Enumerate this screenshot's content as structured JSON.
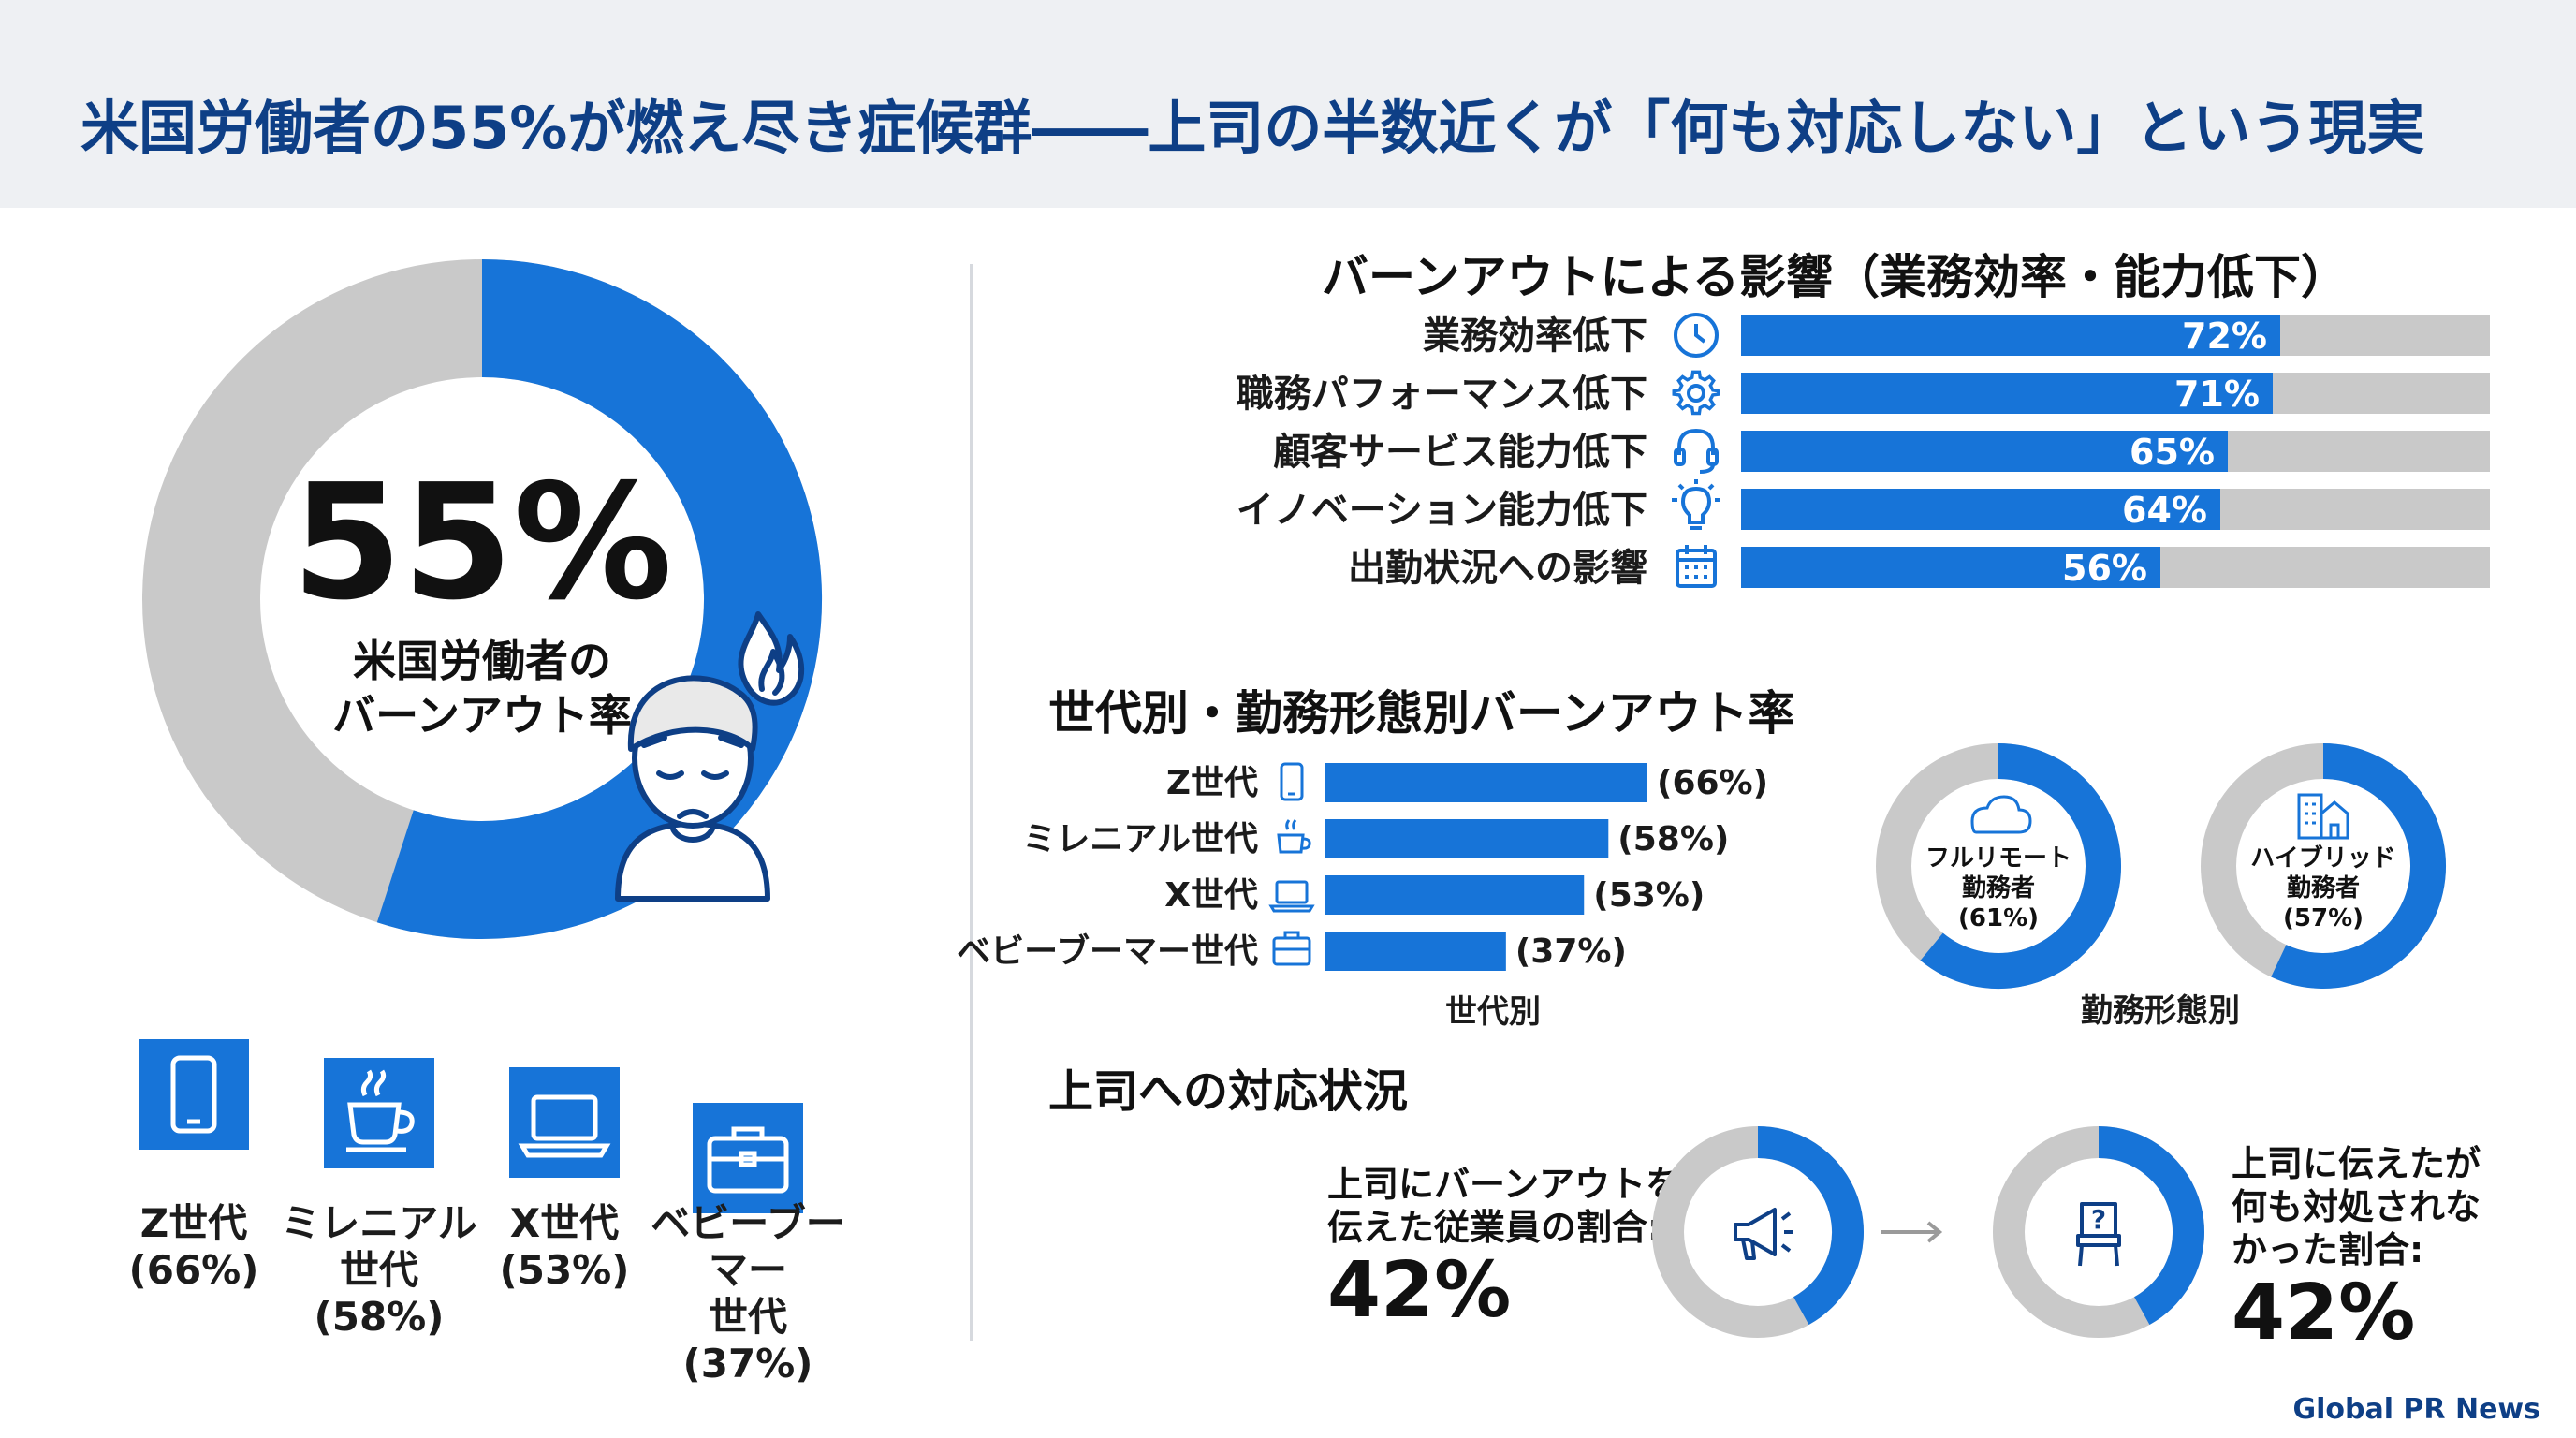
{
  "title": "米国労働者の55%が燃え尽き症候群――上司の半数近くが「何も対応しない」という現実",
  "footer": "Global PR News",
  "colors": {
    "accent": "#1774d8",
    "gray": "#c9c9c9",
    "navy": "#0e3f86"
  },
  "main_ring": {
    "value_label": "55%",
    "label_line1": "米国労働者の",
    "label_line2": "バーンアウト率",
    "icon": "burned-out-worker-icon"
  },
  "generation_tiles": [
    {
      "icon": "smartphone-icon",
      "lines": [
        "Z世代",
        "(66%)"
      ]
    },
    {
      "icon": "coffee-cup-icon",
      "lines": [
        "ミレニアル",
        "世代",
        "(58%)"
      ]
    },
    {
      "icon": "laptop-icon",
      "lines": [
        "X世代",
        "(53%)"
      ]
    },
    {
      "icon": "briefcase-icon",
      "lines": [
        "ベビーブーマー",
        "世代",
        "(37%)"
      ]
    }
  ],
  "impact": {
    "title": "バーンアウトによる影響（業務効率・能力低下）"
  },
  "generation_section": {
    "title": "世代別・勤務形態別バーンアウト率",
    "gen_caption": "世代別",
    "work_caption": "勤務形態別"
  },
  "work_style": [
    {
      "icon": "cloud-icon",
      "lines": [
        "フルリモート",
        "勤務者",
        "(61%)"
      ]
    },
    {
      "icon": "building-icon",
      "lines": [
        "ハイブリッド",
        "勤務者",
        "(57%)"
      ]
    }
  ],
  "boss": {
    "title": "上司への対応状況",
    "reported_lines": [
      "上司にバーンアウトを",
      "伝えた従業員の割合:"
    ],
    "reported_pct": "42%",
    "no_action_lines": [
      "上司に伝えたが",
      "何も対処されな",
      "かった割合:"
    ],
    "no_action_pct": "42%"
  },
  "chart_data": [
    {
      "type": "pie",
      "title": "米国労働者のバーンアウト率",
      "categories": [
        "バーンアウト",
        ""
      ],
      "values": [
        55,
        45
      ]
    },
    {
      "type": "bar",
      "title": "バーンアウトによる影響（業務効率・能力低下）",
      "categories": [
        "業務効率低下",
        "職務パフォーマンス低下",
        "顧客サービス能力低下",
        "イノベーション能力低下",
        "出勤状況への影響"
      ],
      "icons": [
        "clock-icon",
        "gear-icon",
        "headset-icon",
        "lightbulb-icon",
        "calendar-icon"
      ],
      "values": [
        72,
        71,
        65,
        64,
        56
      ],
      "value_labels": [
        "72%",
        "71%",
        "65%",
        "64%",
        "56%"
      ],
      "ylim": [
        0,
        100
      ]
    },
    {
      "type": "bar",
      "title": "世代別",
      "categories": [
        "Z世代",
        "ミレニアル世代",
        "X世代",
        "ベビーブーマー世代"
      ],
      "icons": [
        "smartphone-icon",
        "coffee-cup-icon",
        "laptop-icon",
        "briefcase-icon"
      ],
      "values": [
        66,
        58,
        53,
        37
      ],
      "value_labels": [
        "(66%)",
        "(58%)",
        "(53%)",
        "(37%)"
      ],
      "ylim": [
        0,
        100
      ]
    },
    {
      "type": "pie",
      "title": "勤務形態別",
      "categories": [
        "フルリモート勤務者",
        "ハイブリッド勤務者"
      ],
      "values": [
        61,
        57
      ]
    },
    {
      "type": "pie",
      "categories": [
        "上司にバーンアウトを伝えた従業員の割合"
      ],
      "values": [
        42
      ]
    },
    {
      "type": "pie",
      "categories": [
        "上司に伝えたが何も対処されなかった割合"
      ],
      "values": [
        42
      ]
    }
  ]
}
